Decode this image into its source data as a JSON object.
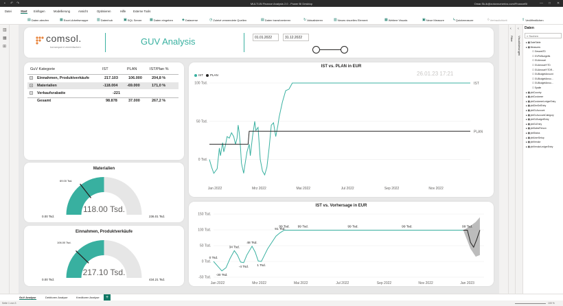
{
  "window": {
    "title": "MULTI-BI Finance Analysis 2.0 - Power BI Desktop",
    "user": "Omar.Sk-ik@zotovnumerics.com/FinanceBI",
    "controls": [
      "—",
      "□",
      "✕"
    ]
  },
  "menu": [
    "Datei",
    "Start",
    "Einfügen",
    "Modellierung",
    "Ansicht",
    "Optimieren",
    "Hilfe",
    "Externe Tools"
  ],
  "ribbon": [
    "Daten abrufen",
    "Excel-Arbeitsmappe",
    "Datenhub",
    "SQL Server",
    "Daten eingeben",
    "Dataverse",
    "Zuletzt verwendete Quellen",
    "Daten transformieren",
    "Aktualisieren",
    "Neues visuelles Element",
    "Weitere Visuals",
    "Neue Measure",
    "Quickmeasure",
    "Vertraulichkeit",
    "Veröffentlichen"
  ],
  "header": {
    "logo": "comsol.",
    "tagline": "konsequent vereinfachen",
    "title": "GUV Analysis",
    "date_from": "01.01.2022",
    "date_to": "31.12.2022"
  },
  "table": {
    "headers": [
      "GuV Kategorie",
      "IST",
      "PLAN",
      "IST/Plan %"
    ],
    "rows": [
      {
        "label": "Einnahmen, Produktverkäufe",
        "ist": "217.103",
        "plan": "106.000",
        "pct": "204,8 %",
        "toggle": "+"
      },
      {
        "label": "Materialien",
        "ist": "-118.004",
        "plan": "-69.000",
        "pct": "171,0 %",
        "toggle": "+"
      },
      {
        "label": "Verkaufsrabatte",
        "ist": "-221",
        "plan": "",
        "pct": "",
        "toggle": "+"
      },
      {
        "label": "Gesamt",
        "ist": "98.878",
        "plan": "37.000",
        "pct": "267,2 %",
        "toggle": ""
      }
    ]
  },
  "gauge1": {
    "title": "Materialien",
    "value_label": "118.00 Tsd.",
    "min_label": "0.00 Tsd.",
    "max_label": "236.01 Tsd.",
    "target_label": "69.00 Tsd.",
    "fill": 0.5,
    "target": 0.29
  },
  "gauge2": {
    "title": "Einnahmen, Produktverkäufe",
    "value_label": "217.10 Tsd.",
    "min_label": "0.00 Tsd.",
    "max_label": "434.21 Tsd.",
    "target_label": "106.00 Tsd.",
    "fill": 0.5,
    "target": 0.244
  },
  "chart_data": [
    {
      "type": "line",
      "title": "IST vs. PLAN in EUR",
      "watermark": "26.01.23 17:21",
      "series": [
        {
          "name": "IST",
          "color": "#38b0a0"
        },
        {
          "name": "PLAN",
          "color": "#252423"
        }
      ],
      "yticks": [
        "100 Tsd.",
        "50 Tsd.",
        "0 Tsd."
      ],
      "ylim": [
        -30,
        100
      ],
      "xticks": [
        "Jan 2022",
        "Mrz 2022",
        "Mai 2022",
        "Jul 2022",
        "Sep 2022",
        "Nov 2022"
      ],
      "ist": [
        [
          0,
          0
        ],
        [
          0.1,
          -10
        ],
        [
          0.2,
          -18
        ],
        [
          0.35,
          -12
        ],
        [
          0.45,
          15
        ],
        [
          0.5,
          5
        ],
        [
          0.6,
          22
        ],
        [
          0.65,
          10
        ],
        [
          0.72,
          18
        ],
        [
          0.8,
          30
        ],
        [
          0.9,
          28
        ],
        [
          1.0,
          35
        ],
        [
          1.1,
          30
        ],
        [
          1.18,
          20
        ],
        [
          1.25,
          28
        ],
        [
          1.3,
          45
        ],
        [
          1.35,
          35
        ],
        [
          1.4,
          18
        ],
        [
          1.45,
          -5
        ],
        [
          1.55,
          -18
        ],
        [
          1.6,
          -8
        ],
        [
          1.7,
          10
        ],
        [
          1.8,
          20
        ],
        [
          1.85,
          5
        ],
        [
          1.95,
          30
        ],
        [
          2.05,
          50
        ],
        [
          2.1,
          38
        ],
        [
          2.2,
          42
        ],
        [
          2.3,
          0
        ],
        [
          2.4,
          -15
        ],
        [
          2.5,
          -20
        ],
        [
          2.6,
          -10
        ],
        [
          2.7,
          15
        ],
        [
          2.8,
          45
        ],
        [
          2.9,
          48
        ],
        [
          3.0,
          30
        ],
        [
          3.1,
          45
        ],
        [
          3.15,
          55
        ],
        [
          3.3,
          75
        ],
        [
          3.45,
          90
        ],
        [
          3.6,
          92
        ],
        [
          3.75,
          100
        ],
        [
          11.8,
          100
        ]
      ],
      "plan": [
        [
          0,
          20
        ],
        [
          1.75,
          20
        ],
        [
          1.8,
          37
        ],
        [
          11.8,
          37
        ]
      ],
      "end_labels": [
        "IST",
        "PLAN"
      ]
    },
    {
      "type": "line",
      "title": "IST vs. Vorhersage in EUR",
      "series": [
        {
          "name": "IST",
          "color": "#38b0a0"
        },
        {
          "name": "Vorhersage",
          "color": "#252423"
        }
      ],
      "yticks": [
        "150 Tsd.",
        "100 Tsd.",
        "50 Tsd.",
        "0 Tsd.",
        "-50 Tsd."
      ],
      "ylim": [
        -50,
        150
      ],
      "xticks": [
        "Jan 2022",
        "Mrz 2022",
        "Mai 2022",
        "Jul 2022",
        "Sep 2022",
        "Nov 2022",
        "Jan 2023"
      ],
      "ist": [
        [
          0,
          0
        ],
        [
          0.2,
          -15
        ],
        [
          0.4,
          -30
        ],
        [
          0.6,
          -20
        ],
        [
          0.8,
          10
        ],
        [
          1.0,
          34
        ],
        [
          1.15,
          20
        ],
        [
          1.3,
          -2
        ],
        [
          1.45,
          -4
        ],
        [
          1.6,
          20
        ],
        [
          1.85,
          48
        ],
        [
          2.0,
          30
        ],
        [
          2.15,
          1
        ],
        [
          2.3,
          0
        ],
        [
          2.45,
          20
        ],
        [
          2.6,
          40
        ],
        [
          2.8,
          60
        ],
        [
          3.0,
          80
        ],
        [
          3.2,
          91
        ],
        [
          3.4,
          99
        ],
        [
          12.0,
          99
        ]
      ],
      "forecast": [
        [
          12.0,
          99
        ],
        [
          12.2,
          99
        ],
        [
          12.35,
          60
        ],
        [
          12.5,
          45
        ],
        [
          12.65,
          70
        ],
        [
          12.8,
          99
        ]
      ],
      "labels": [
        "0 Tsd.",
        "-30 Tsd.",
        "34 Tsd.",
        "-4 Tsd.",
        "48 Tsd.",
        "1 Tsd.",
        "91 Tsd.",
        "99 Tsd.",
        "99 Tsd.",
        "99 Tsd.",
        "99 Tsd.",
        "99 Tsd."
      ]
    }
  ],
  "panes": {
    "filter": "Filter",
    "visual": "Visualisierungen",
    "data": "Daten",
    "search_placeholder": "Suchen",
    "fields": [
      "DateTable",
      "Measures",
      "GesamtTD",
      "GVFinBudgetfs",
      "GUAmount",
      "GUAmountYTD",
      "GUAmountYTDR...",
      "GUBudgetAmount",
      "GUBudgetAmou...",
      "GUBudgetAmou...",
      "Spalte",
      "pbiCountry",
      "pbiCustomer",
      "pbiCustomerLedgerEntry",
      "pbiDimSelEntry",
      "pbiGLAccount",
      "pbiGLAccountCategory",
      "pbiGLBudgetEntry",
      "pbiGLEntry",
      "pbiSalesPerson",
      "pbiStatus",
      "pbiUserSetup",
      "pbiVendor",
      "pbiVendorLedgerEntry"
    ]
  },
  "tabs": [
    "GuV Analyse",
    "Debitoren Analyse",
    "Kreditoren Analyse"
  ],
  "status": {
    "left": "Seite 1 von 3",
    "zoom": "100 %"
  }
}
